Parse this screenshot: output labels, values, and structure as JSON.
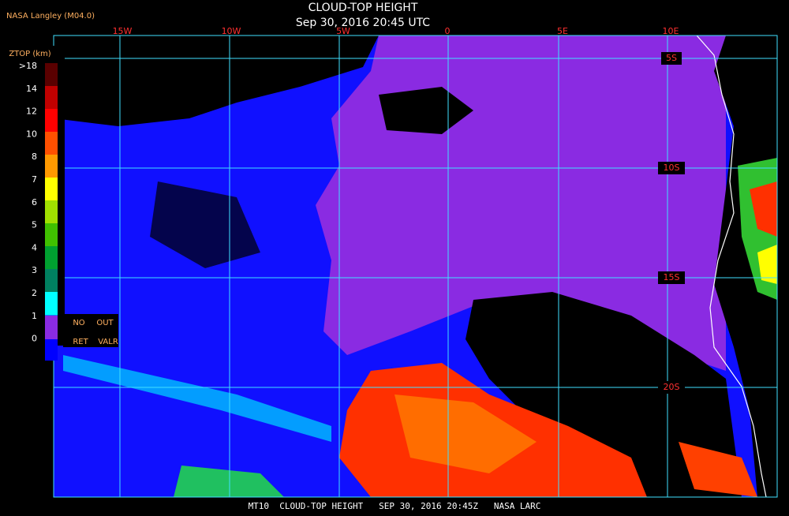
{
  "header": {
    "source": "NASA Langley (M04.0)",
    "title": "CLOUD-TOP HEIGHT",
    "timestamp": "Sep 30, 2016 20:45 UTC"
  },
  "colorbar": {
    "title": "ZTOP (km)",
    "labels": [
      ">18",
      "14",
      "12",
      "10",
      "8",
      "7",
      "6",
      "5",
      "4",
      "3",
      "2",
      "1",
      "0"
    ],
    "no_data_labels": [
      "NO",
      "OUT",
      "RET",
      "VALR"
    ]
  },
  "map": {
    "longitude_labels": [
      "15W",
      "10W",
      "5W",
      "0",
      "5E",
      "10E"
    ],
    "latitude_labels": [
      "5S",
      "10S",
      "15S",
      "20S"
    ]
  },
  "footer": "MT10  CLOUD-TOP HEIGHT   SEP 30, 2016 20:45Z   NASA LARC"
}
